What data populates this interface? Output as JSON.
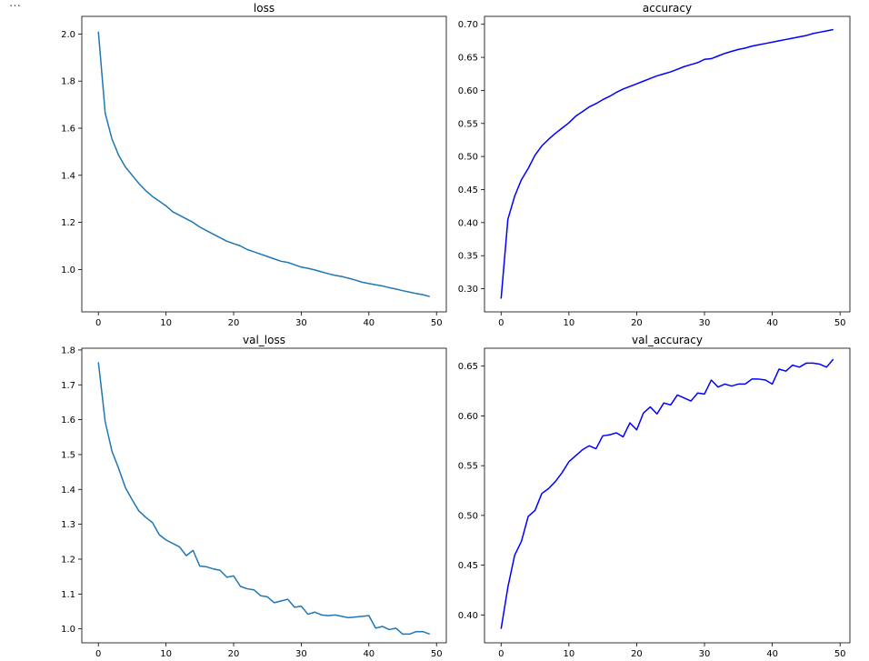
{
  "cell_prompt": "…",
  "colors": {
    "loss": "#1f77b4",
    "accuracy": "#0000ff",
    "val_loss": "#1f77b4",
    "val_accuracy": "#0000ff"
  },
  "chart_data": [
    {
      "type": "line",
      "title": "loss",
      "xlabel": "",
      "ylabel": "",
      "xlim": [
        -2.45,
        51.45
      ],
      "ylim": [
        0.82,
        2.075
      ],
      "xticks": [
        0,
        10,
        20,
        30,
        40,
        50
      ],
      "yticks": [
        1.0,
        1.2,
        1.4,
        1.6,
        1.8,
        2.0
      ],
      "ytick_decimals": 1,
      "color": "#1f77b4",
      "grid": false,
      "series": [
        {
          "values": [
            2.01,
            1.665,
            1.555,
            1.485,
            1.435,
            1.4,
            1.365,
            1.335,
            1.31,
            1.29,
            1.27,
            1.245,
            1.23,
            1.215,
            1.2,
            1.18,
            1.165,
            1.15,
            1.135,
            1.12,
            1.11,
            1.1,
            1.085,
            1.075,
            1.065,
            1.055,
            1.045,
            1.035,
            1.03,
            1.02,
            1.01,
            1.005,
            0.998,
            0.99,
            0.982,
            0.975,
            0.97,
            0.963,
            0.955,
            0.946,
            0.94,
            0.935,
            0.93,
            0.923,
            0.917,
            0.91,
            0.904,
            0.898,
            0.893,
            0.885
          ]
        }
      ]
    },
    {
      "type": "line",
      "title": "accuracy",
      "xlabel": "",
      "ylabel": "",
      "xlim": [
        -2.45,
        51.45
      ],
      "ylim": [
        0.265,
        0.712
      ],
      "xticks": [
        0,
        10,
        20,
        30,
        40,
        50
      ],
      "yticks": [
        0.3,
        0.35,
        0.4,
        0.45,
        0.5,
        0.55,
        0.6,
        0.65,
        0.7
      ],
      "ytick_decimals": 2,
      "color": "#0000ff",
      "grid": false,
      "series": [
        {
          "values": [
            0.285,
            0.405,
            0.44,
            0.465,
            0.482,
            0.502,
            0.516,
            0.526,
            0.535,
            0.543,
            0.551,
            0.561,
            0.568,
            0.575,
            0.58,
            0.586,
            0.591,
            0.597,
            0.602,
            0.606,
            0.61,
            0.614,
            0.618,
            0.622,
            0.625,
            0.628,
            0.632,
            0.636,
            0.639,
            0.642,
            0.647,
            0.648,
            0.652,
            0.656,
            0.659,
            0.662,
            0.664,
            0.667,
            0.669,
            0.671,
            0.673,
            0.675,
            0.677,
            0.679,
            0.681,
            0.683,
            0.686,
            0.688,
            0.69,
            0.692
          ]
        }
      ]
    },
    {
      "type": "line",
      "title": "val_loss",
      "xlabel": "",
      "ylabel": "",
      "xlim": [
        -2.45,
        51.45
      ],
      "ylim": [
        0.96,
        1.805
      ],
      "xticks": [
        0,
        10,
        20,
        30,
        40,
        50
      ],
      "yticks": [
        1.0,
        1.1,
        1.2,
        1.3,
        1.4,
        1.5,
        1.6,
        1.7,
        1.8
      ],
      "ytick_decimals": 1,
      "color": "#1f77b4",
      "grid": false,
      "series": [
        {
          "values": [
            1.765,
            1.595,
            1.51,
            1.46,
            1.405,
            1.37,
            1.338,
            1.32,
            1.305,
            1.27,
            1.255,
            1.245,
            1.235,
            1.21,
            1.225,
            1.18,
            1.178,
            1.172,
            1.168,
            1.148,
            1.152,
            1.122,
            1.115,
            1.112,
            1.095,
            1.092,
            1.075,
            1.08,
            1.085,
            1.062,
            1.065,
            1.042,
            1.048,
            1.04,
            1.038,
            1.04,
            1.036,
            1.032,
            1.034,
            1.036,
            1.038,
            1.002,
            1.007,
            0.998,
            1.002,
            0.985,
            0.985,
            0.992,
            0.992,
            0.985
          ]
        }
      ]
    },
    {
      "type": "line",
      "title": "val_accuracy",
      "xlabel": "",
      "ylabel": "",
      "xlim": [
        -2.45,
        51.45
      ],
      "ylim": [
        0.372,
        0.668
      ],
      "xticks": [
        0,
        10,
        20,
        30,
        40,
        50
      ],
      "yticks": [
        0.4,
        0.45,
        0.5,
        0.55,
        0.6,
        0.65
      ],
      "ytick_decimals": 2,
      "color": "#0000ff",
      "grid": false,
      "series": [
        {
          "values": [
            0.386,
            0.428,
            0.46,
            0.474,
            0.499,
            0.505,
            0.522,
            0.527,
            0.534,
            0.543,
            0.554,
            0.56,
            0.566,
            0.57,
            0.567,
            0.58,
            0.581,
            0.583,
            0.579,
            0.593,
            0.586,
            0.603,
            0.609,
            0.602,
            0.613,
            0.611,
            0.621,
            0.618,
            0.615,
            0.623,
            0.622,
            0.636,
            0.629,
            0.632,
            0.63,
            0.632,
            0.632,
            0.637,
            0.637,
            0.636,
            0.632,
            0.647,
            0.645,
            0.651,
            0.649,
            0.653,
            0.653,
            0.652,
            0.649,
            0.657
          ]
        }
      ]
    }
  ]
}
